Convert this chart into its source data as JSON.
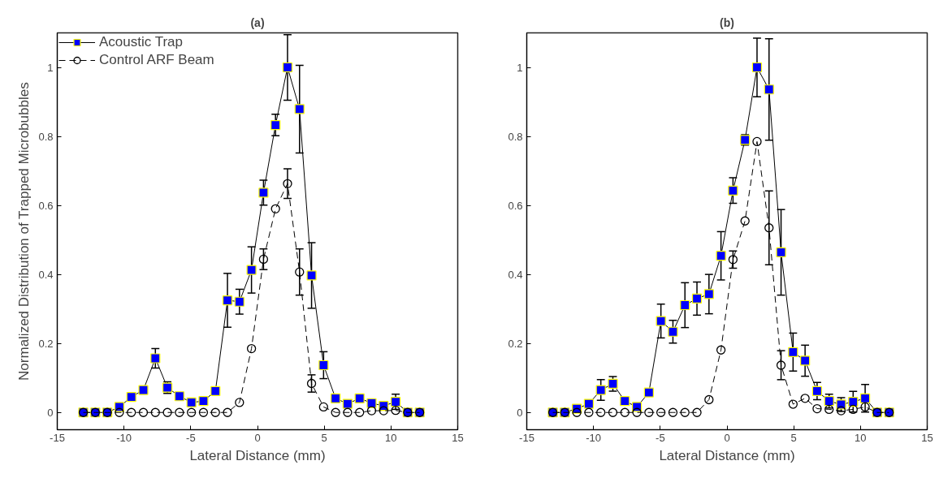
{
  "chart_data": [
    {
      "type": "line",
      "title": "(a)",
      "xlabel": "Lateral Distance (mm)",
      "ylabel": "Normalized Distribution of Trapped Microbubbles",
      "x": [
        -13.05,
        -12.15,
        -11.25,
        -10.35,
        -9.45,
        -8.55,
        -7.65,
        -6.75,
        -5.85,
        -4.95,
        -4.05,
        -3.15,
        -2.25,
        -1.35,
        -0.45,
        0.45,
        1.35,
        2.25,
        3.15,
        4.05,
        4.95,
        5.85,
        6.75,
        7.65,
        8.55,
        9.45,
        10.35,
        11.25,
        12.15
      ],
      "xlim": [
        -15,
        15
      ],
      "xticks": [
        -15,
        -10,
        -5,
        0,
        5,
        10,
        15
      ],
      "ylim": [
        -0.05,
        1.1
      ],
      "yticks": [
        0,
        0.2,
        0.4,
        0.6,
        0.8,
        1
      ],
      "grid": false,
      "legend": "top left",
      "series": [
        {
          "name": "Acoustic Trap",
          "color": "#0000ff",
          "marker": "square",
          "line_style": "solid",
          "values": [
            0,
            0,
            0,
            0.016,
            0.045,
            0.065,
            0.157,
            0.072,
            0.047,
            0.029,
            0.033,
            0.062,
            0.325,
            0.321,
            0.413,
            0.637,
            0.833,
            1.0,
            0.879,
            0.397,
            0.137,
            0.041,
            0.025,
            0.041,
            0.027,
            0.019,
            0.031,
            0,
            0
          ],
          "errors": [
            null,
            null,
            null,
            null,
            null,
            null,
            0.028,
            0.017,
            null,
            null,
            null,
            null,
            0.078,
            0.036,
            0.067,
            0.036,
            0.031,
            0.095,
            0.127,
            0.095,
            0.039,
            null,
            null,
            null,
            null,
            null,
            0.022,
            null,
            null
          ]
        },
        {
          "name": "Control ARF Beam",
          "color": "#000000",
          "marker": "circle",
          "line_style": "dashed",
          "values": [
            0,
            0,
            0,
            0,
            0,
            0,
            0,
            0,
            0,
            0,
            0,
            0,
            0,
            0.029,
            0.185,
            0.444,
            0.59,
            0.663,
            0.407,
            0.084,
            0.016,
            0,
            0,
            0,
            0.005,
            0.005,
            0.006,
            0,
            0
          ],
          "errors": [
            null,
            null,
            null,
            null,
            null,
            null,
            null,
            null,
            null,
            null,
            null,
            null,
            null,
            null,
            null,
            0.03,
            null,
            0.043,
            0.067,
            0.025,
            null,
            null,
            null,
            null,
            null,
            null,
            null,
            null,
            null
          ]
        }
      ]
    },
    {
      "type": "line",
      "title": "(b)",
      "xlabel": "Lateral Distance (mm)",
      "x": [
        -13.05,
        -12.15,
        -11.25,
        -10.35,
        -9.45,
        -8.55,
        -7.65,
        -6.75,
        -5.85,
        -4.95,
        -4.05,
        -3.15,
        -2.25,
        -1.35,
        -0.45,
        0.45,
        1.35,
        2.25,
        3.15,
        4.05,
        4.95,
        5.85,
        6.75,
        7.65,
        8.55,
        9.45,
        10.35,
        11.25,
        12.15
      ],
      "xlim": [
        -15,
        15
      ],
      "xticks": [
        -15,
        -10,
        -5,
        0,
        5,
        10,
        15
      ],
      "ylim": [
        -0.05,
        1.1
      ],
      "yticks": [
        0,
        0.2,
        0.4,
        0.6,
        0.8,
        1
      ],
      "grid": false,
      "series": [
        {
          "color": "#0000ff",
          "marker": "square",
          "line_style": "solid",
          "values": [
            0,
            0,
            0.011,
            0.025,
            0.065,
            0.083,
            0.033,
            0.016,
            0.058,
            0.265,
            0.234,
            0.311,
            0.33,
            0.343,
            0.454,
            0.643,
            0.79,
            1.0,
            0.936,
            0.464,
            0.175,
            0.15,
            0.062,
            0.033,
            0.023,
            0.031,
            0.041,
            0,
            0
          ],
          "errors": [
            null,
            null,
            null,
            null,
            0.03,
            0.021,
            null,
            null,
            null,
            0.049,
            0.033,
            0.065,
            0.048,
            0.057,
            0.07,
            0.037,
            0.015,
            0.085,
            0.147,
            0.124,
            0.055,
            0.045,
            0.025,
            0.02,
            0.02,
            0.03,
            0.04,
            null,
            null
          ]
        },
        {
          "color": "#000000",
          "marker": "circle",
          "line_style": "dashed",
          "values": [
            0,
            0,
            0,
            0,
            0,
            0,
            0,
            0,
            0,
            0,
            0,
            0,
            0,
            0.037,
            0.181,
            0.443,
            0.555,
            0.785,
            0.535,
            0.137,
            0.024,
            0.041,
            0.011,
            0.009,
            0.005,
            0.009,
            0.016,
            0,
            0
          ],
          "errors": [
            null,
            null,
            null,
            null,
            null,
            null,
            null,
            null,
            null,
            null,
            null,
            null,
            null,
            null,
            null,
            0.025,
            null,
            null,
            0.107,
            0.042,
            null,
            null,
            null,
            null,
            null,
            null,
            null,
            null,
            null
          ]
        }
      ]
    }
  ]
}
